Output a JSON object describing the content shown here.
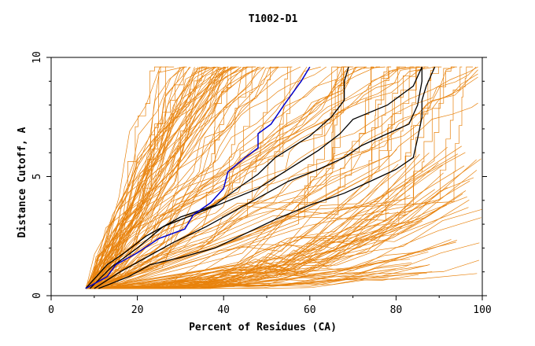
{
  "chart_data": {
    "type": "line",
    "title": "T1002-D1",
    "xlabel": "Percent of Residues (CA)",
    "ylabel": "Distance Cutoff, A",
    "xlim": [
      0,
      100
    ],
    "ylim": [
      0,
      10
    ],
    "x_ticks": [
      "0",
      "20",
      "40",
      "60",
      "80",
      "100"
    ],
    "y_ticks": [
      "0",
      "5",
      "10"
    ],
    "grid": false,
    "legend": "none",
    "colors": {
      "background_series": "#e8820c",
      "highlight": "#0000cc",
      "reference": "#000000",
      "axis": "#000000"
    },
    "highlight_series": {
      "points": [
        [
          8,
          0.3
        ],
        [
          13,
          0.8
        ],
        [
          15,
          1.3
        ],
        [
          20,
          1.8
        ],
        [
          25,
          2.4
        ],
        [
          31,
          2.8
        ],
        [
          33,
          3.4
        ],
        [
          37,
          3.9
        ],
        [
          40,
          4.5
        ],
        [
          41,
          5.2
        ],
        [
          45,
          5.8
        ],
        [
          48,
          6.2
        ],
        [
          48,
          6.8
        ],
        [
          51,
          7.2
        ],
        [
          54,
          8.0
        ],
        [
          58,
          9.0
        ],
        [
          60,
          9.6
        ]
      ]
    },
    "reference_series": [
      {
        "points": [
          [
            8,
            0.3
          ],
          [
            13,
            1.3
          ],
          [
            17,
            1.8
          ],
          [
            22,
            2.5
          ],
          [
            30,
            3.3
          ],
          [
            38,
            3.8
          ],
          [
            44,
            4.6
          ],
          [
            48,
            5.1
          ],
          [
            52,
            5.8
          ],
          [
            60,
            6.7
          ],
          [
            65,
            7.5
          ],
          [
            68,
            8.2
          ],
          [
            68,
            9.0
          ],
          [
            69,
            9.6
          ]
        ]
      },
      {
        "points": [
          [
            9,
            0.3
          ],
          [
            14,
            1.2
          ],
          [
            20,
            2.0
          ],
          [
            26,
            2.9
          ],
          [
            33,
            3.4
          ],
          [
            40,
            3.9
          ],
          [
            48,
            4.5
          ],
          [
            55,
            5.3
          ],
          [
            62,
            6.1
          ],
          [
            67,
            6.8
          ],
          [
            70,
            7.4
          ],
          [
            78,
            8.0
          ],
          [
            84,
            8.8
          ],
          [
            86,
            9.6
          ]
        ]
      },
      {
        "points": [
          [
            11,
            0.3
          ],
          [
            18,
            0.8
          ],
          [
            23,
            1.3
          ],
          [
            30,
            1.6
          ],
          [
            38,
            2.0
          ],
          [
            45,
            2.6
          ],
          [
            52,
            3.2
          ],
          [
            60,
            3.8
          ],
          [
            68,
            4.3
          ],
          [
            74,
            4.8
          ],
          [
            80,
            5.3
          ],
          [
            84,
            5.8
          ],
          [
            85,
            6.6
          ],
          [
            86,
            7.5
          ],
          [
            86,
            8.2
          ],
          [
            87,
            8.8
          ],
          [
            89,
            9.6
          ]
        ]
      },
      {
        "points": [
          [
            10,
            0.3
          ],
          [
            16,
            1.0
          ],
          [
            22,
            1.6
          ],
          [
            28,
            2.2
          ],
          [
            36,
            2.9
          ],
          [
            42,
            3.5
          ],
          [
            48,
            4.1
          ],
          [
            55,
            4.8
          ],
          [
            62,
            5.3
          ],
          [
            68,
            5.8
          ],
          [
            72,
            6.3
          ],
          [
            78,
            6.8
          ],
          [
            83,
            7.2
          ],
          [
            85,
            8.0
          ],
          [
            86,
            9.0
          ],
          [
            86,
            9.6
          ]
        ]
      }
    ]
  }
}
